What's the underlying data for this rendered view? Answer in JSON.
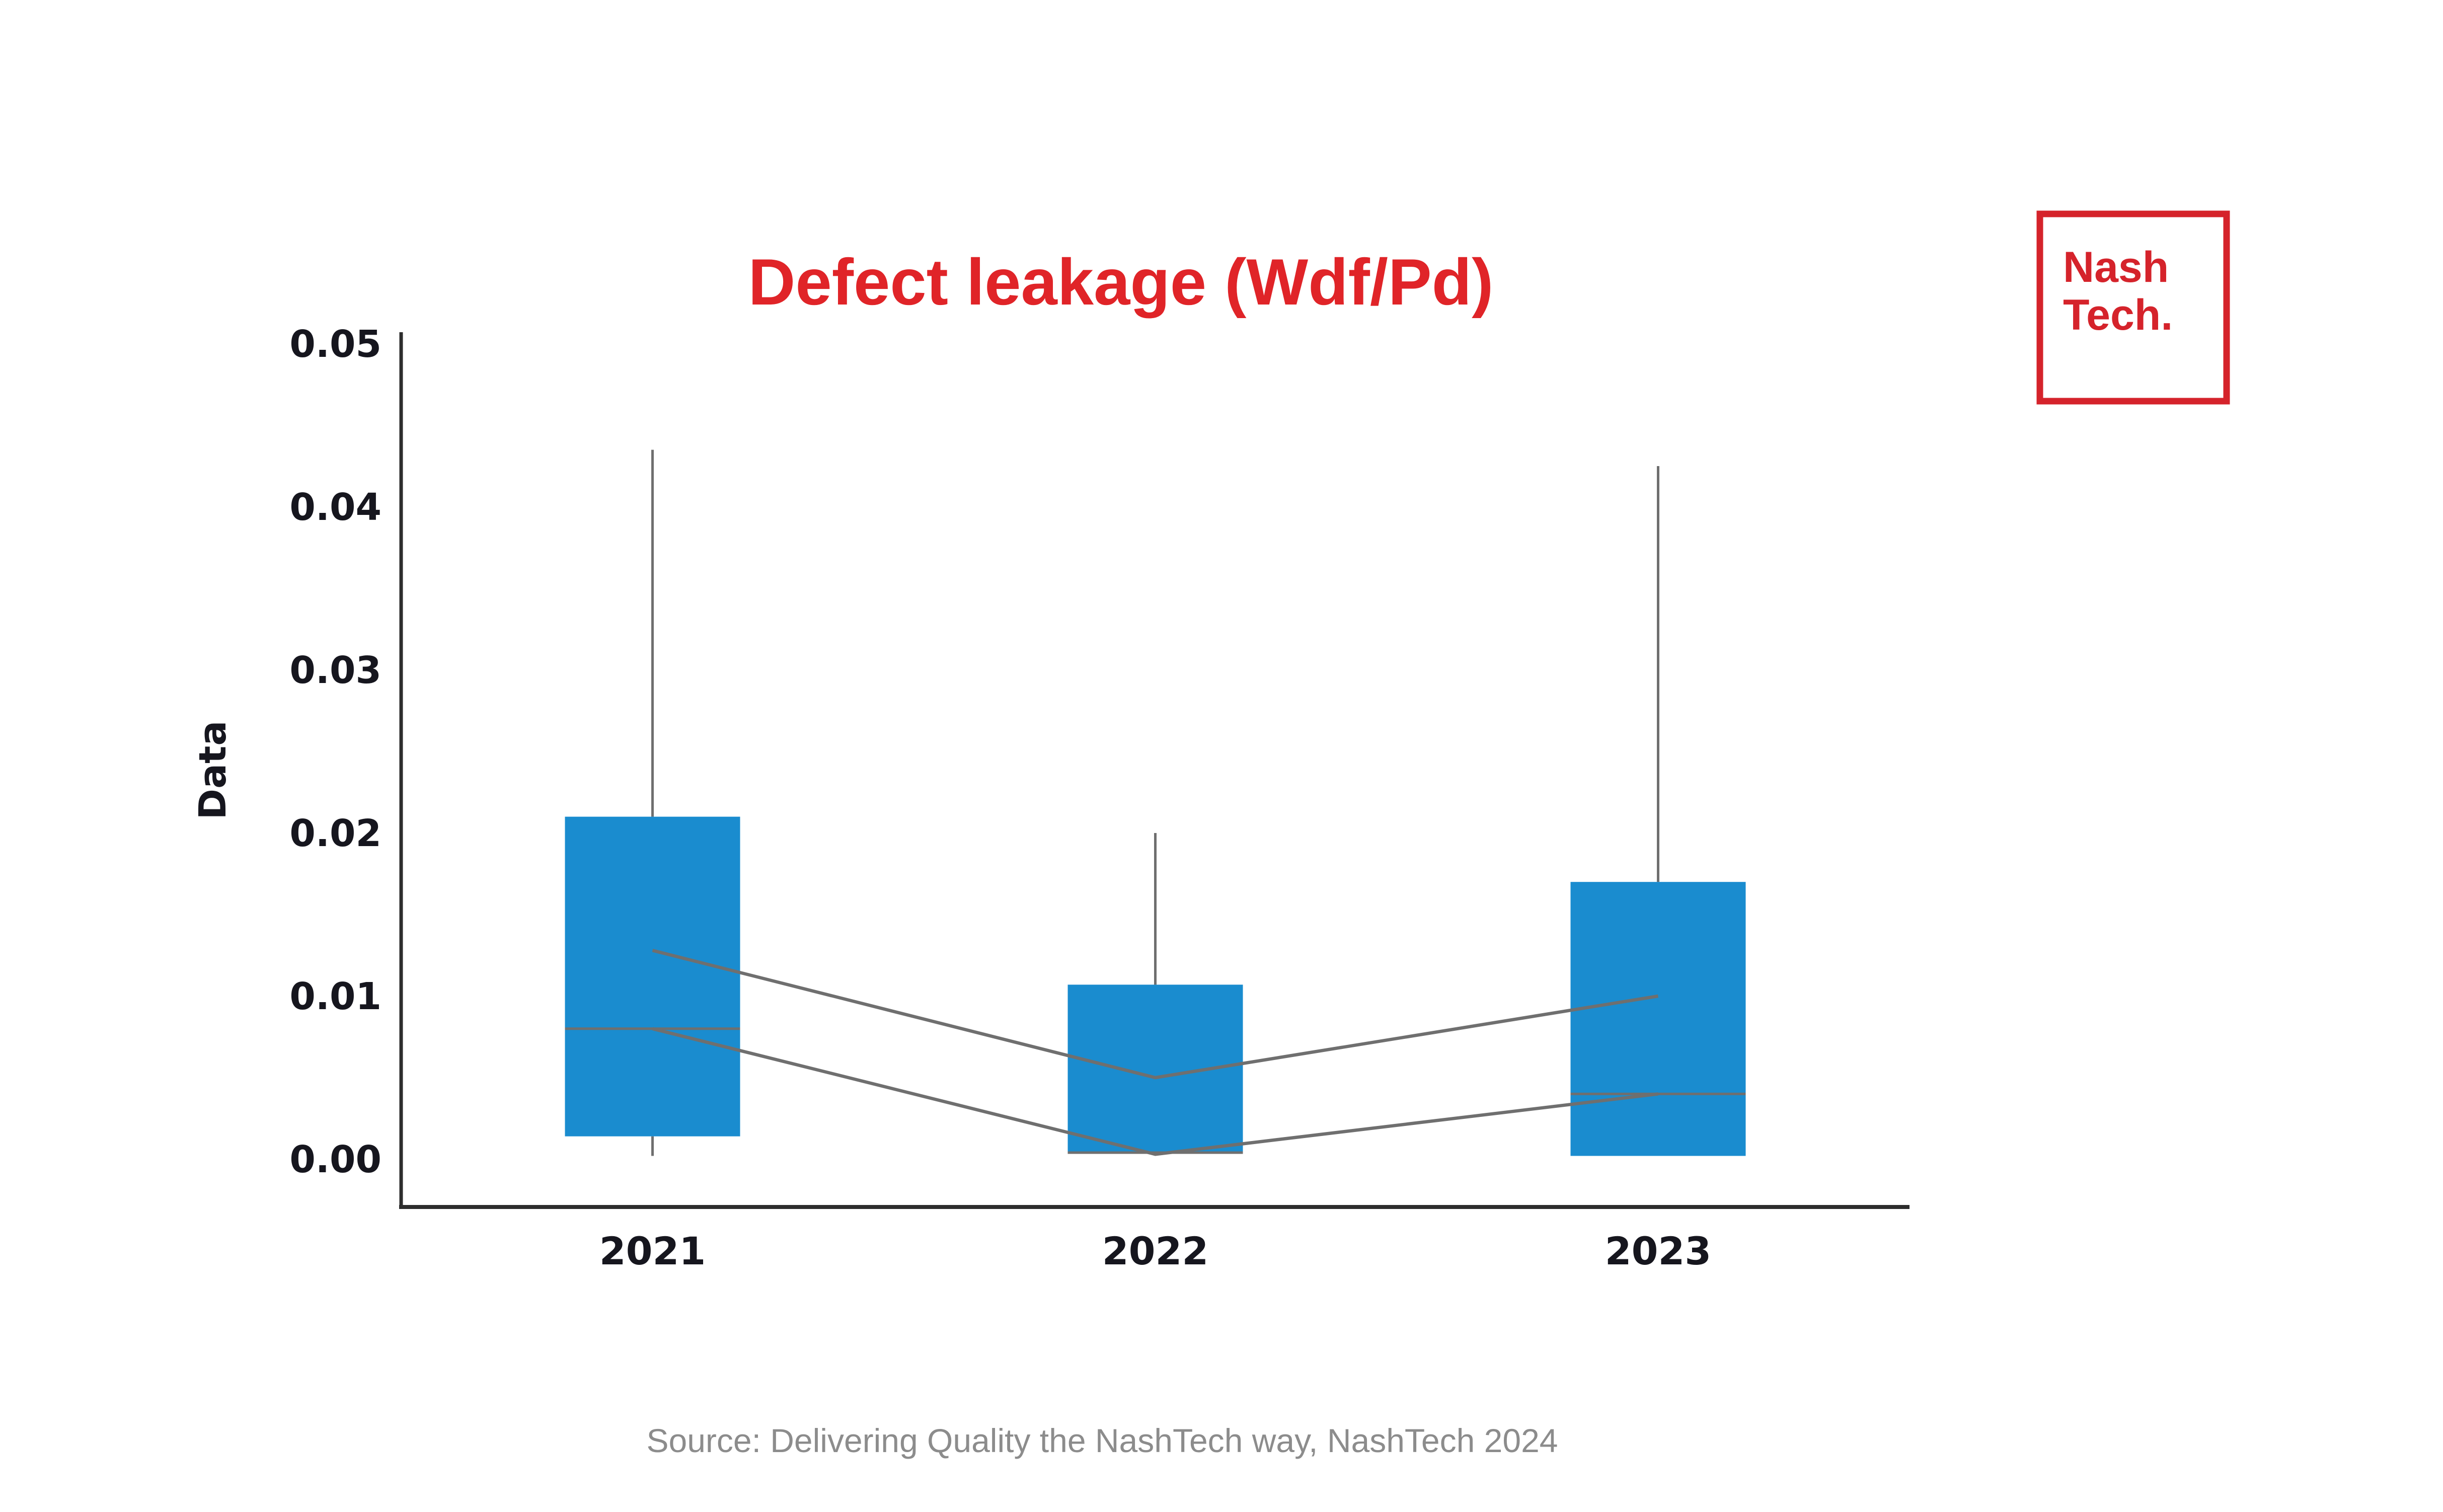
{
  "title": {
    "text": "Defect leakage (Wdf/Pd)",
    "color": "#e02428"
  },
  "logo": {
    "line1": "Nash",
    "line2": "Tech.",
    "color": "#d5232b"
  },
  "source": {
    "text": "Source: Delivering Quality the NashTech way, NashTech 2024",
    "color": "#8c8c8c"
  },
  "chart_data": {
    "type": "box",
    "title": "Defect leakage (Wdf/Pd)",
    "xlabel": "",
    "ylabel": "Data",
    "categories": [
      "2021",
      "2022",
      "2023"
    ],
    "ylim": [
      0,
      0.05
    ],
    "yticks": [
      "0.00",
      "0.01",
      "0.02",
      "0.03",
      "0.04",
      "0.05"
    ],
    "grid": false,
    "legend_position": "none",
    "boxes": [
      {
        "category": "2021",
        "q1": 0.0014,
        "median": 0.008,
        "q3": 0.021,
        "whisker_low": 0.0002,
        "whisker_high": 0.0435
      },
      {
        "category": "2022",
        "q1": 0.0004,
        "median": 0.0004,
        "q3": 0.0107,
        "whisker_low": 0.0004,
        "whisker_high": 0.02
      },
      {
        "category": "2023",
        "q1": 0.0002,
        "median": 0.004,
        "q3": 0.017,
        "whisker_low": 0.0002,
        "whisker_high": 0.0425
      }
    ],
    "overlay_lines": [
      {
        "name": "upper-connector-line",
        "values": [
          0.0128,
          0.005,
          0.01
        ]
      },
      {
        "name": "lower-connector-line",
        "values": [
          0.008,
          0.0003,
          0.004
        ]
      }
    ],
    "colors": {
      "box_fill": "#1a8ccf",
      "whisker_and_lines": "#6f6f6f",
      "axis": "#2d2d2d",
      "tick_label": "#16161e"
    }
  }
}
